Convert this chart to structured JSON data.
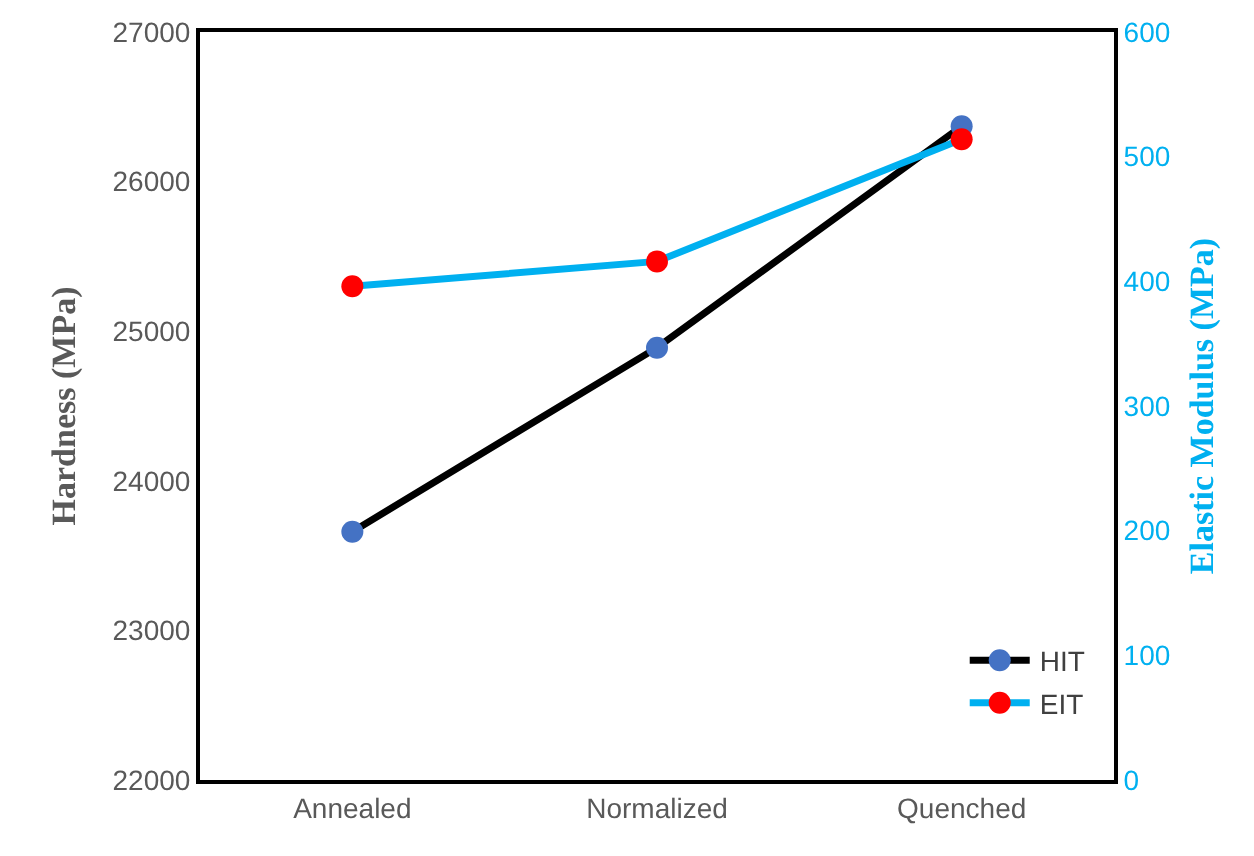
{
  "chart_data": {
    "type": "line",
    "categories": [
      "Annealed",
      "Normalized",
      "Quenched"
    ],
    "ylabel": "Hardness (MPa)",
    "y2label": "Elastic Modulus (MPa)",
    "ylim": [
      22000,
      27000
    ],
    "yticks": [
      22000,
      23000,
      24000,
      25000,
      26000,
      27000
    ],
    "y2lim": [
      0,
      600
    ],
    "y2ticks": [
      0,
      100,
      200,
      300,
      400,
      500,
      600
    ],
    "grid": false,
    "legend": "bottom right",
    "marker": "circle",
    "line_style": "solid",
    "series": [
      {
        "name": "HIT",
        "color": "#000000",
        "colors": [
          "#4472c4",
          "#4472c4",
          "#4472c4"
        ],
        "values": [
          23660,
          24890,
          26370
        ]
      },
      {
        "name": "EIT",
        "color": "#00b0f0",
        "colors": [
          "#ff0000",
          "#ff0000",
          "#ff0000"
        ],
        "values": [
          396,
          416,
          514
        ],
        "axis": "y2"
      }
    ]
  }
}
